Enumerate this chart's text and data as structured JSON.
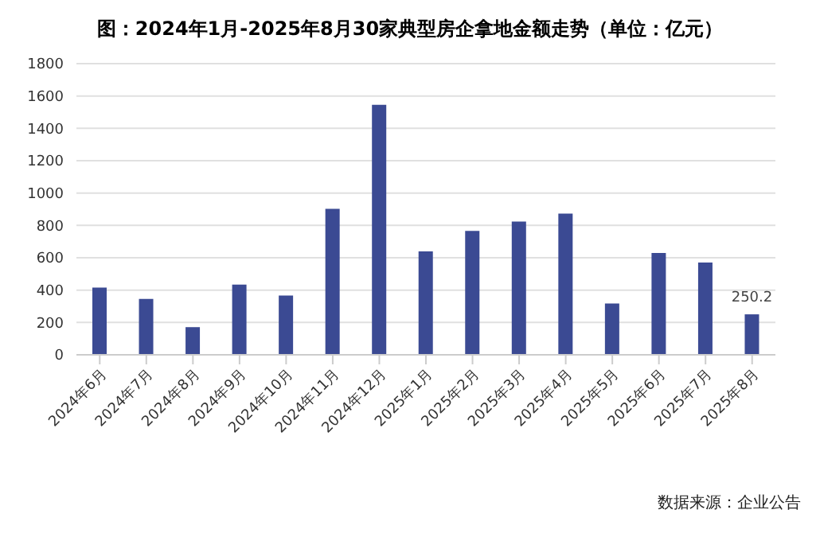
{
  "chart_data": {
    "type": "bar",
    "title": "图：2024年1月-2025年8月30家典型房企拿地金额走势（单位：亿元）",
    "categories": [
      "2024年6月",
      "2024年7月",
      "2024年8月",
      "2024年9月",
      "2024年10月",
      "2024年11月",
      "2024年12月",
      "2025年1月",
      "2025年2月",
      "2025年3月",
      "2025年4月",
      "2025年5月",
      "2025年6月",
      "2025年7月",
      "2025年8月"
    ],
    "values": [
      415,
      346,
      171,
      434,
      366,
      902,
      1546,
      639,
      766,
      824,
      873,
      317,
      629,
      571,
      250.2
    ],
    "value_labels": [
      null,
      null,
      null,
      null,
      null,
      null,
      null,
      null,
      null,
      null,
      null,
      null,
      null,
      null,
      "250.2"
    ],
    "color": "#3b4a93",
    "ylim": [
      0,
      1800
    ],
    "yticks": [
      0,
      200,
      400,
      600,
      800,
      1000,
      1200,
      1400,
      1600,
      1800
    ],
    "grid": "y",
    "annotations": [
      "数据来源：企业公告"
    ]
  }
}
